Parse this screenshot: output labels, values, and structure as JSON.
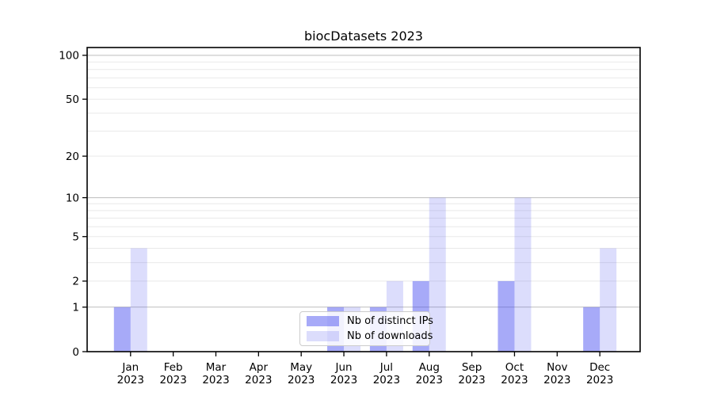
{
  "chart_data": {
    "type": "bar",
    "title": "biocDatasets 2023",
    "categories": [
      "Jan",
      "Feb",
      "Mar",
      "Apr",
      "May",
      "Jun",
      "Jul",
      "Aug",
      "Sep",
      "Oct",
      "Nov",
      "Dec"
    ],
    "category_sublabel": "2023",
    "series": [
      {
        "key": "ips",
        "name": "Nb of distinct IPs",
        "color": "rgba(60,66,240,0.45)",
        "values": [
          1,
          0,
          0,
          0,
          0,
          1,
          1,
          2,
          0,
          2,
          0,
          1
        ]
      },
      {
        "key": "downloads",
        "name": "Nb of downloads",
        "color": "rgba(60,66,240,0.18)",
        "values": [
          4,
          0,
          0,
          0,
          0,
          1,
          2,
          10,
          0,
          10,
          0,
          4
        ]
      }
    ],
    "y_axis": {
      "scale": "log1p",
      "tick_values": [
        0,
        1,
        2,
        5,
        10,
        20,
        50,
        100
      ],
      "max": 113,
      "major_gridlines": [
        1,
        10,
        100
      ],
      "minor_gridlines": [
        2,
        3,
        4,
        5,
        6,
        7,
        8,
        9,
        20,
        30,
        40,
        50,
        60,
        70,
        80,
        90
      ]
    },
    "grid": "horizontal",
    "legend_position": "lower-center-inside",
    "colors": {
      "grid_major": "#bdbdbd",
      "grid_minor": "#e9e9e9",
      "spine": "#000000",
      "text": "#000000",
      "legend_border": "#cccccc"
    }
  }
}
